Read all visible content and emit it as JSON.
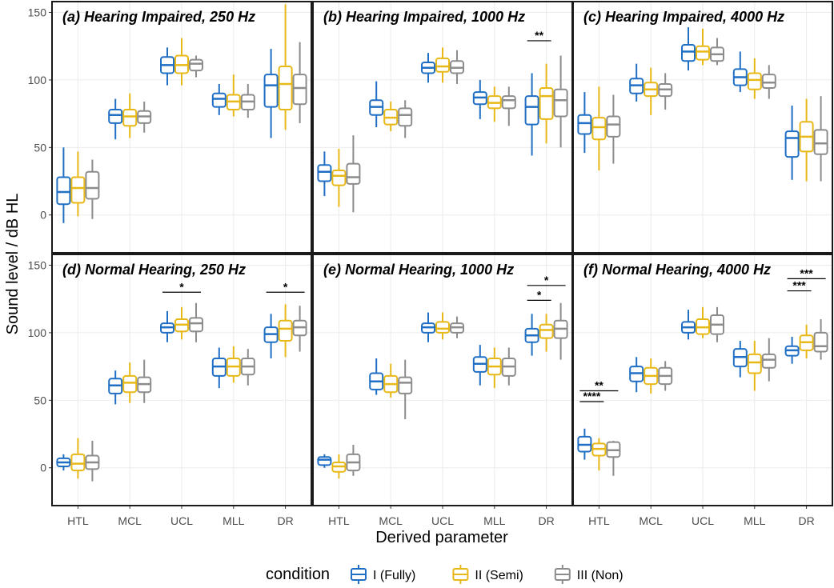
{
  "chart_data": {
    "type": "box",
    "ylabel": "Sound level / dB HL",
    "xlabel": "Derived parameter",
    "ylim": [
      -28,
      158
    ],
    "yticks": [
      0,
      50,
      100,
      150
    ],
    "categories": [
      "HTL",
      "MCL",
      "UCL",
      "MLL",
      "DR"
    ],
    "legend": {
      "title": "condition",
      "entries": [
        {
          "name": "I (Fully)",
          "color": "#1f6fc5"
        },
        {
          "name": "II (Semi)",
          "color": "#e8b816"
        },
        {
          "name": "III (Non)",
          "color": "#8c8c8c"
        }
      ]
    },
    "panels": [
      {
        "title": "(a) Hearing Impaired, 250 Hz",
        "data": [
          [
            [
              -6,
              8,
              17,
              28,
              50
            ],
            [
              -1,
              9,
              20,
              28,
              47
            ],
            [
              -3,
              12,
              20,
              32,
              41
            ]
          ],
          [
            [
              56,
              68,
              74,
              78,
              86
            ],
            [
              57,
              66,
              73,
              78,
              90
            ],
            [
              61,
              68,
              73,
              77,
              84
            ]
          ],
          [
            [
              96,
              105,
              111,
              117,
              124
            ],
            [
              96,
              105,
              111,
              118,
              131
            ],
            [
              102,
              107,
              112,
              115,
              118
            ]
          ],
          [
            [
              74,
              80,
              86,
              90,
              97
            ],
            [
              73,
              78,
              84,
              89,
              104
            ],
            [
              72,
              78,
              84,
              89,
              97
            ]
          ],
          [
            [
              57,
              80,
              96,
              104,
              123
            ],
            [
              63,
              78,
              97,
              110,
              156
            ],
            [
              68,
              82,
              94,
              104,
              128
            ]
          ]
        ],
        "sig": []
      },
      {
        "title": "(b) Hearing Impaired, 1000 Hz",
        "data": [
          [
            [
              14,
              25,
              32,
              37,
              47
            ],
            [
              6,
              22,
              29,
              33,
              49
            ],
            [
              2,
              23,
              28,
              38,
              59
            ]
          ],
          [
            [
              65,
              74,
              80,
              85,
              99
            ],
            [
              62,
              67,
              72,
              78,
              84
            ],
            [
              57,
              66,
              74,
              79,
              85
            ]
          ],
          [
            [
              98,
              105,
              109,
              113,
              120
            ],
            [
              98,
              106,
              110,
              116,
              124
            ],
            [
              97,
              105,
              109,
              114,
              122
            ]
          ],
          [
            [
              71,
              82,
              87,
              91,
              100
            ],
            [
              69,
              79,
              83,
              88,
              95
            ],
            [
              66,
              79,
              85,
              88,
              95
            ]
          ],
          [
            [
              44,
              67,
              80,
              88,
              105
            ],
            [
              53,
              71,
              88,
              94,
              112
            ],
            [
              50,
              73,
              85,
              93,
              118
            ]
          ]
        ],
        "sig": [
          {
            "cat": 4,
            "from": 0,
            "to": 1,
            "y": 129,
            "label": "**"
          }
        ]
      },
      {
        "title": "(c) Hearing Impaired, 4000 Hz",
        "data": [
          [
            [
              46,
              60,
              68,
              74,
              91
            ],
            [
              33,
              56,
              65,
              72,
              95
            ],
            [
              38,
              58,
              67,
              73,
              89
            ]
          ],
          [
            [
              84,
              90,
              96,
              101,
              112
            ],
            [
              74,
              88,
              93,
              98,
              109
            ],
            [
              78,
              88,
              93,
              97,
              105
            ]
          ],
          [
            [
              107,
              114,
              121,
              126,
              139
            ],
            [
              111,
              115,
              121,
              125,
              138
            ],
            [
              111,
              114,
              119,
              124,
              131
            ]
          ],
          [
            [
              91,
              96,
              102,
              108,
              121
            ],
            [
              86,
              93,
              100,
              105,
              116
            ],
            [
              86,
              94,
              98,
              104,
              111
            ]
          ],
          [
            [
              26,
              43,
              57,
              62,
              81
            ],
            [
              25,
              47,
              58,
              69,
              86
            ],
            [
              25,
              45,
              53,
              63,
              88
            ]
          ]
        ],
        "sig": []
      },
      {
        "title": "(d) Normal Hearing, 250 Hz",
        "data": [
          [
            [
              -2,
              1,
              4,
              7,
              10
            ],
            [
              -8,
              -2,
              3,
              10,
              22
            ],
            [
              -10,
              -1,
              4,
              9,
              20
            ]
          ],
          [
            [
              47,
              55,
              61,
              66,
              72
            ],
            [
              48,
              56,
              63,
              68,
              78
            ],
            [
              48,
              56,
              62,
              67,
              80
            ]
          ],
          [
            [
              93,
              100,
              104,
              107,
              116
            ],
            [
              95,
              101,
              106,
              110,
              119
            ],
            [
              93,
              101,
              107,
              111,
              122
            ]
          ],
          [
            [
              59,
              68,
              75,
              81,
              89
            ],
            [
              63,
              68,
              75,
              81,
              90
            ],
            [
              61,
              69,
              75,
              81,
              88
            ]
          ],
          [
            [
              81,
              93,
              99,
              104,
              114
            ],
            [
              82,
              94,
              103,
              109,
              121
            ],
            [
              86,
              98,
              104,
              109,
              120
            ]
          ]
        ],
        "sig": [
          {
            "cat": 2,
            "from": 0,
            "to": 2,
            "y": 130,
            "label": "*"
          },
          {
            "cat": 4,
            "from": 0,
            "to": 2,
            "y": 130,
            "label": "*"
          }
        ]
      },
      {
        "title": "(e) Normal Hearing, 1000 Hz",
        "data": [
          [
            [
              0,
              2,
              6,
              8,
              10
            ],
            [
              -8,
              -3,
              1,
              4,
              10
            ],
            [
              -6,
              -2,
              4,
              10,
              17
            ]
          ],
          [
            [
              54,
              58,
              64,
              70,
              81
            ],
            [
              52,
              56,
              62,
              68,
              77
            ],
            [
              36,
              55,
              63,
              67,
              80
            ]
          ],
          [
            [
              93,
              100,
              104,
              107,
              115
            ],
            [
              95,
              100,
              103,
              108,
              115
            ],
            [
              96,
              100,
              104,
              107,
              112
            ]
          ],
          [
            [
              61,
              71,
              77,
              82,
              91
            ],
            [
              59,
              69,
              75,
              81,
              89
            ],
            [
              61,
              68,
              75,
              81,
              89
            ]
          ],
          [
            [
              83,
              93,
              98,
              103,
              114
            ],
            [
              86,
              96,
              102,
              106,
              114
            ],
            [
              80,
              96,
              103,
              109,
              122
            ]
          ]
        ],
        "sig": [
          {
            "cat": 4,
            "from": 0,
            "to": 1,
            "y": 124,
            "label": "*"
          },
          {
            "cat": 4,
            "from": 0,
            "to": 2,
            "y": 135,
            "label": "*"
          }
        ]
      },
      {
        "title": "(f) Normal Hearing, 4000 Hz",
        "data": [
          [
            [
              6,
              12,
              17,
              23,
              29
            ],
            [
              -2,
              9,
              14,
              18,
              22
            ],
            [
              -6,
              8,
              13,
              19,
              20
            ]
          ],
          [
            [
              56,
              64,
              70,
              75,
              82
            ],
            [
              55,
              62,
              68,
              74,
              81
            ],
            [
              57,
              62,
              68,
              74,
              79
            ]
          ],
          [
            [
              95,
              100,
              104,
              108,
              117
            ],
            [
              96,
              99,
              104,
              110,
              119
            ],
            [
              93,
              99,
              106,
              113,
              119
            ]
          ],
          [
            [
              67,
              75,
              82,
              88,
              94
            ],
            [
              57,
              70,
              78,
              84,
              94
            ],
            [
              64,
              74,
              80,
              84,
              96
            ]
          ],
          [
            [
              77,
              83,
              87,
              90,
              97
            ],
            [
              81,
              87,
              93,
              98,
              106
            ],
            [
              80,
              86,
              90,
              100,
              110
            ]
          ]
        ],
        "sig": [
          {
            "cat": 0,
            "from": 0,
            "to": 1,
            "y": 49,
            "label": "****"
          },
          {
            "cat": 0,
            "from": 0,
            "to": 2,
            "y": 57,
            "label": "**"
          },
          {
            "cat": 4,
            "from": 0,
            "to": 1,
            "y": 131,
            "label": "***"
          },
          {
            "cat": 4,
            "from": 0,
            "to": 2,
            "y": 140,
            "label": "***"
          }
        ]
      }
    ]
  }
}
